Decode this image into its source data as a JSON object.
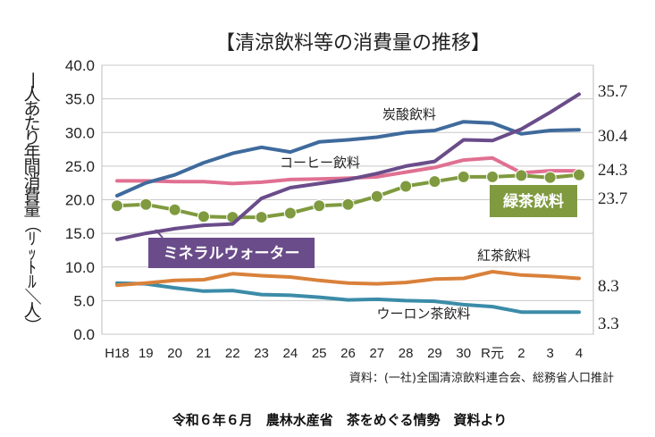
{
  "chart_data": {
    "type": "line",
    "title": "【清涼飲料等の消費量の推移】",
    "ylabel": "一人あたり年間消費量（ﾘｯﾄﾙ／人）",
    "ylim": [
      0,
      40
    ],
    "yticks": [
      "0.0",
      "5.0",
      "10.0",
      "15.0",
      "20.0",
      "25.0",
      "30.0",
      "35.0",
      "40.0"
    ],
    "grid": true,
    "categories": [
      "H18",
      "19",
      "20",
      "21",
      "22",
      "23",
      "24",
      "25",
      "26",
      "27",
      "28",
      "29",
      "30",
      "R元",
      "2",
      "3",
      "4"
    ],
    "series": [
      {
        "name": "炭酸飲料",
        "color": "#3f6a9c",
        "end_label": "30.4",
        "values": [
          20.6,
          22.5,
          23.7,
          25.5,
          26.9,
          27.8,
          27.1,
          28.6,
          28.9,
          29.3,
          30.0,
          30.3,
          31.6,
          31.4,
          29.8,
          30.3,
          30.4
        ]
      },
      {
        "name": "ミネラルウォーター",
        "color": "#6a4c8a",
        "end_label": "35.7",
        "label_style": "badge",
        "values": [
          14.1,
          15.0,
          15.7,
          16.2,
          16.4,
          20.2,
          21.8,
          22.4,
          23.0,
          23.9,
          25.0,
          25.7,
          28.9,
          28.8,
          30.5,
          33.0,
          35.7
        ]
      },
      {
        "name": "コーヒー飲料",
        "color": "#e07092",
        "end_label": "24.3",
        "values": [
          22.8,
          22.8,
          22.7,
          22.7,
          22.4,
          22.6,
          23.0,
          23.1,
          23.2,
          23.4,
          24.1,
          24.8,
          25.9,
          26.2,
          24.0,
          24.3,
          24.3
        ]
      },
      {
        "name": "緑茶飲料",
        "color": "#7f9a3f",
        "end_label": "23.7",
        "label_style": "badge",
        "markers": true,
        "values": [
          19.1,
          19.3,
          18.5,
          17.5,
          17.4,
          17.4,
          18.0,
          19.1,
          19.3,
          20.5,
          22.0,
          22.7,
          23.4,
          23.4,
          23.6,
          23.3,
          23.7
        ]
      },
      {
        "name": "紅茶飲料",
        "color": "#d9813a",
        "end_label": "8.3",
        "values": [
          7.3,
          7.6,
          8.0,
          8.1,
          9.0,
          8.7,
          8.5,
          8.0,
          7.6,
          7.5,
          7.7,
          8.2,
          8.3,
          9.3,
          8.8,
          8.6,
          8.3
        ]
      },
      {
        "name": "ウーロン茶飲料",
        "color": "#3b8ca8",
        "end_label": "3.3",
        "values": [
          7.6,
          7.5,
          6.9,
          6.4,
          6.5,
          5.9,
          5.8,
          5.5,
          5.1,
          5.2,
          5.0,
          4.9,
          4.4,
          4.1,
          3.3,
          3.3,
          3.3
        ]
      }
    ],
    "source": "資料：(一社)全国清涼飲料連合会、総務省人口推計",
    "footer": "令和６年６月　農林水産省　茶をめぐる情勢　資料より"
  }
}
